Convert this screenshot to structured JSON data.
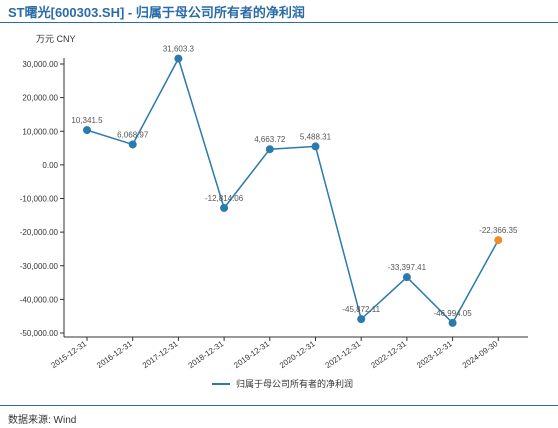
{
  "header": {
    "title": "ST曙光[600303.SH] - 归属于母公司所有者的净利润"
  },
  "footer": {
    "source": "数据来源: Wind"
  },
  "colors": {
    "title": "#2B6BA8",
    "series": "#2B7AAE",
    "highlight": "#F28C28",
    "axis": "#333333"
  },
  "chart_data": {
    "type": "line",
    "ylabel": "万元  CNY",
    "categories": [
      "2015-12-31",
      "2016-12-31",
      "2017-12-31",
      "2018-12-31",
      "2019-12-31",
      "2020-12-31",
      "2021-12-31",
      "2022-12-31",
      "2023-12-31",
      "2024-09-30"
    ],
    "series": [
      {
        "name": "归属于母公司所有者的净利润",
        "values": [
          10341.5,
          6068.97,
          31603.3,
          -12814.06,
          4663.72,
          5488.31,
          -45872.11,
          -33397.41,
          -46994.05,
          -22366.35
        ],
        "labels": [
          "10,341.5",
          "6,068.97",
          "31,603.3",
          "-12,814.06",
          "4,663.72",
          "5,488.31",
          "-45,872.11",
          "-33,397.41",
          "-46,994.05",
          "-22,366.35"
        ]
      }
    ],
    "highlight_index": 9,
    "yticks": [
      30000,
      20000,
      10000,
      0,
      -10000,
      -20000,
      -30000,
      -40000,
      -50000
    ],
    "ytick_labels": [
      "30,000.00",
      "20,000.00",
      "10,000.00",
      "0.00",
      "-10,000.00",
      "-20,000.00",
      "-30,000.00",
      "-40,000.00",
      "-50,000.00"
    ],
    "ylim": [
      -50000,
      30000
    ],
    "grid": false,
    "legend": "bottom"
  }
}
